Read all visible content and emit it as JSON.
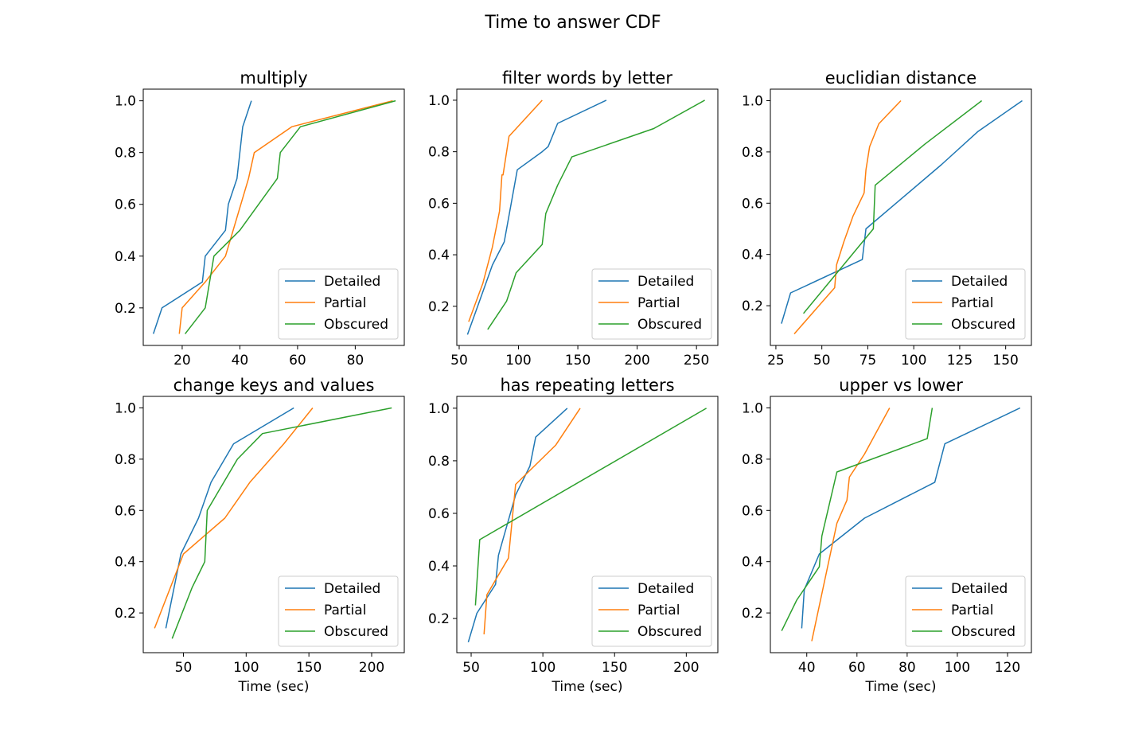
{
  "figure": {
    "title": "Time to answer CDF"
  },
  "colors": {
    "Detailed": "#1f77b4",
    "Partial": "#ff7f0e",
    "Obscured": "#2ca02c",
    "axes": "#000000"
  },
  "chart_data": [
    {
      "type": "line",
      "title": "multiply",
      "xlabel": "",
      "xlim": [
        6.5,
        97
      ],
      "ylim": [
        0.055,
        1.045
      ],
      "xticks": [
        20,
        40,
        60,
        80
      ],
      "yticks": [
        0.2,
        0.4,
        0.6,
        0.8,
        1.0
      ],
      "legend": "lower right",
      "series": [
        {
          "name": "Detailed",
          "x": [
            10,
            13,
            27,
            28,
            35,
            36,
            39,
            41,
            44
          ],
          "y": [
            0.1,
            0.2,
            0.3,
            0.4,
            0.5,
            0.6,
            0.7,
            0.9,
            1.0
          ]
        },
        {
          "name": "Partial",
          "x": [
            19,
            20,
            28,
            35,
            43,
            45,
            58,
            93
          ],
          "y": [
            0.1,
            0.2,
            0.3,
            0.4,
            0.7,
            0.8,
            0.9,
            1.0
          ]
        },
        {
          "name": "Obscured",
          "x": [
            21,
            28,
            31,
            40,
            53,
            54,
            61,
            94
          ],
          "y": [
            0.1,
            0.2,
            0.4,
            0.5,
            0.7,
            0.8,
            0.9,
            1.0
          ]
        }
      ]
    },
    {
      "type": "line",
      "title": "filter words by letter",
      "xlabel": "",
      "xlim": [
        48,
        268
      ],
      "ylim": [
        0.048,
        1.043
      ],
      "xticks": [
        50,
        100,
        150,
        200,
        250
      ],
      "yticks": [
        0.2,
        0.4,
        0.6,
        0.8,
        1.0
      ],
      "legend": "lower right",
      "series": [
        {
          "name": "Detailed",
          "x": [
            57,
            64,
            78,
            88,
            99,
            120,
            125,
            133,
            174
          ],
          "y": [
            0.09,
            0.18,
            0.36,
            0.45,
            0.73,
            0.8,
            0.82,
            0.91,
            1.0
          ]
        },
        {
          "name": "Partial",
          "x": [
            58,
            70,
            78,
            84,
            86,
            87,
            92,
            120
          ],
          "y": [
            0.14,
            0.29,
            0.43,
            0.57,
            0.71,
            0.71,
            0.86,
            1.0
          ]
        },
        {
          "name": "Obscured",
          "x": [
            74,
            90,
            98,
            120,
            123,
            133,
            145,
            214,
            257
          ],
          "y": [
            0.11,
            0.22,
            0.33,
            0.44,
            0.56,
            0.67,
            0.78,
            0.89,
            1.0
          ]
        }
      ]
    },
    {
      "type": "line",
      "title": "euclidian distance",
      "xlabel": "",
      "xlim": [
        22,
        164
      ],
      "ylim": [
        0.045,
        1.045
      ],
      "xticks": [
        25,
        50,
        75,
        100,
        125,
        150
      ],
      "yticks": [
        0.2,
        0.4,
        0.6,
        0.8,
        1.0
      ],
      "legend": "lower right",
      "series": [
        {
          "name": "Detailed",
          "x": [
            28,
            33,
            72,
            74,
            115,
            135,
            159
          ],
          "y": [
            0.13,
            0.25,
            0.38,
            0.5,
            0.75,
            0.88,
            1.0
          ]
        },
        {
          "name": "Partial",
          "x": [
            35,
            57,
            58,
            62,
            67,
            73,
            74,
            76,
            81,
            93
          ],
          "y": [
            0.09,
            0.27,
            0.36,
            0.45,
            0.55,
            0.64,
            0.73,
            0.82,
            0.91,
            1.0
          ]
        },
        {
          "name": "Obscured",
          "x": [
            40,
            78,
            79,
            106,
            137
          ],
          "y": [
            0.17,
            0.5,
            0.67,
            0.83,
            1.0
          ]
        }
      ]
    },
    {
      "type": "line",
      "title": "change keys and values",
      "xlabel": "Time (sec)",
      "xlim": [
        18,
        226
      ],
      "ylim": [
        0.045,
        1.045
      ],
      "xticks": [
        50,
        100,
        150,
        200
      ],
      "yticks": [
        0.2,
        0.4,
        0.6,
        0.8,
        1.0
      ],
      "legend": "lower right",
      "series": [
        {
          "name": "Detailed",
          "x": [
            36,
            48,
            62,
            72,
            90,
            138
          ],
          "y": [
            0.14,
            0.43,
            0.57,
            0.71,
            0.86,
            1.0
          ]
        },
        {
          "name": "Partial",
          "x": [
            27,
            50,
            83,
            103,
            130,
            153
          ],
          "y": [
            0.14,
            0.43,
            0.57,
            0.71,
            0.86,
            1.0
          ]
        },
        {
          "name": "Obscured",
          "x": [
            41,
            57,
            67,
            69,
            81,
            93,
            113,
            216
          ],
          "y": [
            0.1,
            0.3,
            0.4,
            0.6,
            0.7,
            0.8,
            0.9,
            1.0
          ]
        }
      ]
    },
    {
      "type": "line",
      "title": "has repeating letters",
      "xlabel": "Time (sec)",
      "xlim": [
        40,
        222
      ],
      "ylim": [
        0.07,
        1.045
      ],
      "xticks": [
        50,
        100,
        150,
        200
      ],
      "yticks": [
        0.2,
        0.4,
        0.6,
        0.8,
        1.0
      ],
      "legend": "lower right",
      "series": [
        {
          "name": "Detailed",
          "x": [
            48,
            54,
            67,
            69,
            81,
            91,
            95,
            117
          ],
          "y": [
            0.11,
            0.22,
            0.33,
            0.44,
            0.67,
            0.78,
            0.89,
            1.0
          ]
        },
        {
          "name": "Partial",
          "x": [
            59,
            61,
            76,
            81,
            109,
            126
          ],
          "y": [
            0.14,
            0.29,
            0.43,
            0.71,
            0.86,
            1.0
          ]
        },
        {
          "name": "Obscured",
          "x": [
            53,
            56,
            214
          ],
          "y": [
            0.25,
            0.5,
            1.0
          ]
        }
      ]
    },
    {
      "type": "line",
      "title": "upper vs lower",
      "xlabel": "Time (sec)",
      "xlim": [
        25.5,
        129.5
      ],
      "ylim": [
        0.045,
        1.045
      ],
      "xticks": [
        40,
        60,
        80,
        100,
        120
      ],
      "yticks": [
        0.2,
        0.4,
        0.6,
        0.8,
        1.0
      ],
      "legend": "lower right",
      "series": [
        {
          "name": "Detailed",
          "x": [
            38,
            39,
            45,
            63,
            91,
            95,
            125
          ],
          "y": [
            0.14,
            0.29,
            0.43,
            0.57,
            0.71,
            0.86,
            1.0
          ]
        },
        {
          "name": "Partial",
          "x": [
            42,
            52,
            56,
            57,
            63,
            68,
            73
          ],
          "y": [
            0.09,
            0.55,
            0.64,
            0.73,
            0.82,
            0.91,
            1.0
          ]
        },
        {
          "name": "Obscured",
          "x": [
            30,
            36,
            45,
            46,
            52,
            88,
            90
          ],
          "y": [
            0.13,
            0.25,
            0.38,
            0.5,
            0.75,
            0.88,
            1.0
          ]
        }
      ]
    }
  ]
}
